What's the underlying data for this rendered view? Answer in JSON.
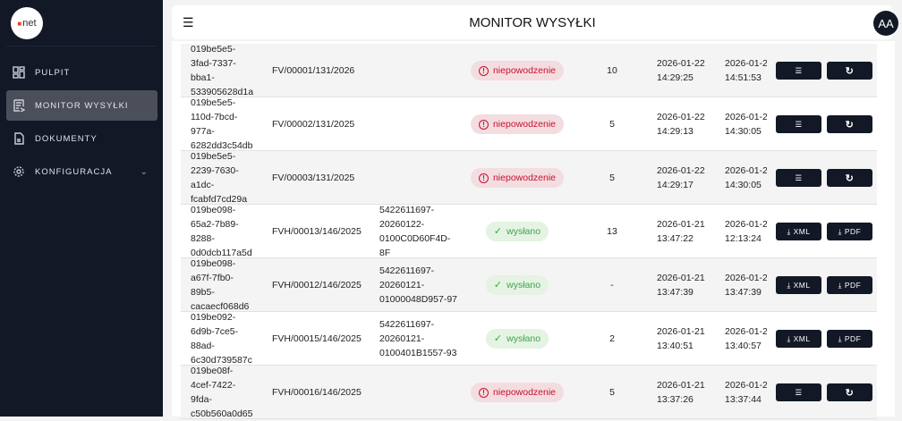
{
  "sidebar": {
    "logo_text": "net",
    "items": [
      {
        "label": "PULPIT",
        "icon": "dashboard-icon"
      },
      {
        "label": "MONITOR WYSYŁKI",
        "icon": "monitor-icon",
        "active": true
      },
      {
        "label": "DOKUMENTY",
        "icon": "document-icon"
      },
      {
        "label": "KONFIGURACJA",
        "icon": "gear-icon",
        "expandable": true
      }
    ]
  },
  "header": {
    "title": "MONITOR WYSYŁKI",
    "avatar": "AA"
  },
  "colors": {
    "sidebar": "#121826",
    "fail": "#c8102e",
    "success": "#3fa34d",
    "button": "#121826"
  },
  "rows": [
    {
      "id": "019be5e5-3fad-7337-bba1-533905628d1a",
      "number": "FV/00001/131/2026",
      "ksef": "",
      "status": "niepowodzenie",
      "status_type": "fail",
      "count": "10",
      "created": "2026-01-22 14:29:25",
      "updated": "2026-01-2",
      "updated_time": "14:51:53",
      "actions": [
        "list",
        "retry"
      ]
    },
    {
      "id": "019be5e5-110d-7bcd-977a-6282dd3c54db",
      "number": "FV/00002/131/2025",
      "ksef": "",
      "status": "niepowodzenie",
      "status_type": "fail",
      "count": "5",
      "created": "2026-01-22 14:29:13",
      "updated": "2026-01-2",
      "updated_time": "14:30:05",
      "actions": [
        "list",
        "retry"
      ]
    },
    {
      "id": "019be5e5-2239-7630-a1dc-fcabfd7cd29a",
      "number": "FV/00003/131/2025",
      "ksef": "",
      "status": "niepowodzenie",
      "status_type": "fail",
      "count": "5",
      "created": "2026-01-22 14:29:17",
      "updated": "2026-01-2",
      "updated_time": "14:30:05",
      "actions": [
        "list",
        "retry"
      ]
    },
    {
      "id": "019be098-65a2-7b89-8288-0d0dcb117a5d",
      "number": "FVH/00013/146/2025",
      "ksef": "5422611697-20260122-0100C0D60F4D-8F",
      "status": "wysłano",
      "status_type": "ok",
      "count": "13",
      "created": "2026-01-21 13:47:22",
      "updated": "2026-01-2",
      "updated_time": "12:13:24",
      "actions": [
        "XML",
        "PDF"
      ]
    },
    {
      "id": "019be098-a67f-7fb0-89b5-cacaecf068d6",
      "number": "FVH/00012/146/2025",
      "ksef": "5422611697-20260121-01000048D957-97",
      "status": "wysłano",
      "status_type": "ok",
      "count": "-",
      "created": "2026-01-21 13:47:39",
      "updated": "2026-01-2",
      "updated_time": "13:47:39",
      "actions": [
        "XML",
        "PDF"
      ]
    },
    {
      "id": "019be092-6d9b-7ce5-88ad-6c30d739587c",
      "number": "FVH/00015/146/2025",
      "ksef": "5422611697-20260121-0100401B1557-93",
      "status": "wysłano",
      "status_type": "ok",
      "count": "2",
      "created": "2026-01-21 13:40:51",
      "updated": "2026-01-2",
      "updated_time": "13:40:57",
      "actions": [
        "XML",
        "PDF"
      ]
    },
    {
      "id": "019be08f-4cef-7422-9fda-c50b560a0d65",
      "number": "FVH/00016/146/2025",
      "ksef": "",
      "status": "niepowodzenie",
      "status_type": "fail",
      "count": "5",
      "created": "2026-01-21 13:37:26",
      "updated": "2026-01-2",
      "updated_time": "13:37:44",
      "actions": [
        "list",
        "retry"
      ]
    }
  ]
}
